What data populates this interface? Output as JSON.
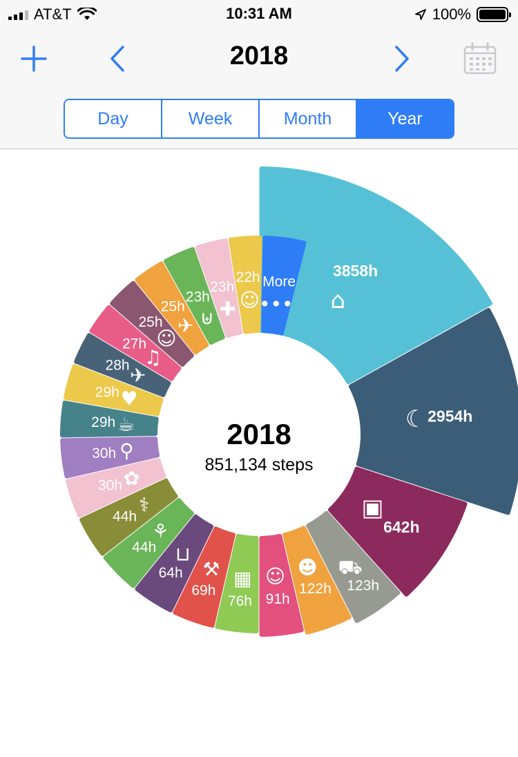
{
  "status": {
    "carrier": "AT&T",
    "time": "10:31 AM",
    "battery": "100%",
    "battery_level": 1.0
  },
  "nav": {
    "title": "2018",
    "add_icon": "plus-icon",
    "prev_icon": "chevron-left-icon",
    "next_icon": "chevron-right-icon",
    "calendar_icon": "calendar-icon"
  },
  "segments": [
    {
      "label": "Day",
      "active": false
    },
    {
      "label": "Week",
      "active": false
    },
    {
      "label": "Month",
      "active": false
    },
    {
      "label": "Year",
      "active": true
    }
  ],
  "center": {
    "title": "2018",
    "subtitle": "851,134 steps"
  },
  "chart_data": {
    "type": "pie",
    "variant": "radial-bar",
    "unit": "h",
    "slices": [
      {
        "label": "3858h",
        "value": 3858,
        "icon": "home-icon",
        "color": "#56c1d6"
      },
      {
        "label": "2954h",
        "value": 2954,
        "icon": "moon-icon",
        "color": "#3c5d78"
      },
      {
        "label": "642h",
        "value": 642,
        "icon": "briefcase-icon",
        "color": "#8c2a5e"
      },
      {
        "label": "123h",
        "value": 123,
        "icon": "car-icon",
        "color": "#979a90"
      },
      {
        "label": "122h",
        "value": 122,
        "icon": "family-icon",
        "color": "#f0a23e"
      },
      {
        "label": "91h",
        "value": 91,
        "icon": "couple-icon",
        "color": "#e3507d"
      },
      {
        "label": "76h",
        "value": 76,
        "icon": "hotel-icon",
        "color": "#8fca55"
      },
      {
        "label": "69h",
        "value": 69,
        "icon": "dumbbell-icon",
        "color": "#e1524a"
      },
      {
        "label": "64h",
        "value": 64,
        "icon": "sofa-icon",
        "color": "#6a4a7c"
      },
      {
        "label": "44h",
        "value": 44,
        "icon": "dance-icon",
        "color": "#6ab558"
      },
      {
        "label": "44h",
        "value": 44,
        "icon": "stethoscope-icon",
        "color": "#8a8d38"
      },
      {
        "label": "30h",
        "value": 30,
        "icon": "film-reel-icon",
        "color": "#f2c2d0"
      },
      {
        "label": "30h",
        "value": 30,
        "icon": "fork-spoon-icon",
        "color": "#a07ec2"
      },
      {
        "label": "29h",
        "value": 29,
        "icon": "coffee-icon",
        "color": "#46828a"
      },
      {
        "label": "29h",
        "value": 29,
        "icon": "heart-icon",
        "color": "#ecc94b"
      },
      {
        "label": "28h",
        "value": 28,
        "icon": "plane-icon",
        "color": "#486278"
      },
      {
        "label": "27h",
        "value": 27,
        "icon": "dancing-couple-icon",
        "color": "#e85d87"
      },
      {
        "label": "25h",
        "value": 25,
        "icon": "elderly-couple-icon",
        "color": "#8b5670"
      },
      {
        "label": "25h",
        "value": 25,
        "icon": "plane-icon",
        "color": "#f0a23e"
      },
      {
        "label": "23h",
        "value": 23,
        "icon": "basket-icon",
        "color": "#6ab558"
      },
      {
        "label": "23h",
        "value": 23,
        "icon": "medicine-icon",
        "color": "#f2c2d0"
      },
      {
        "label": "22h",
        "value": 22,
        "icon": "theater-masks-icon",
        "color": "#ecc94b"
      },
      {
        "label": "More",
        "value": null,
        "icon": "more-dots-icon",
        "color": "#2f7df6"
      }
    ]
  }
}
